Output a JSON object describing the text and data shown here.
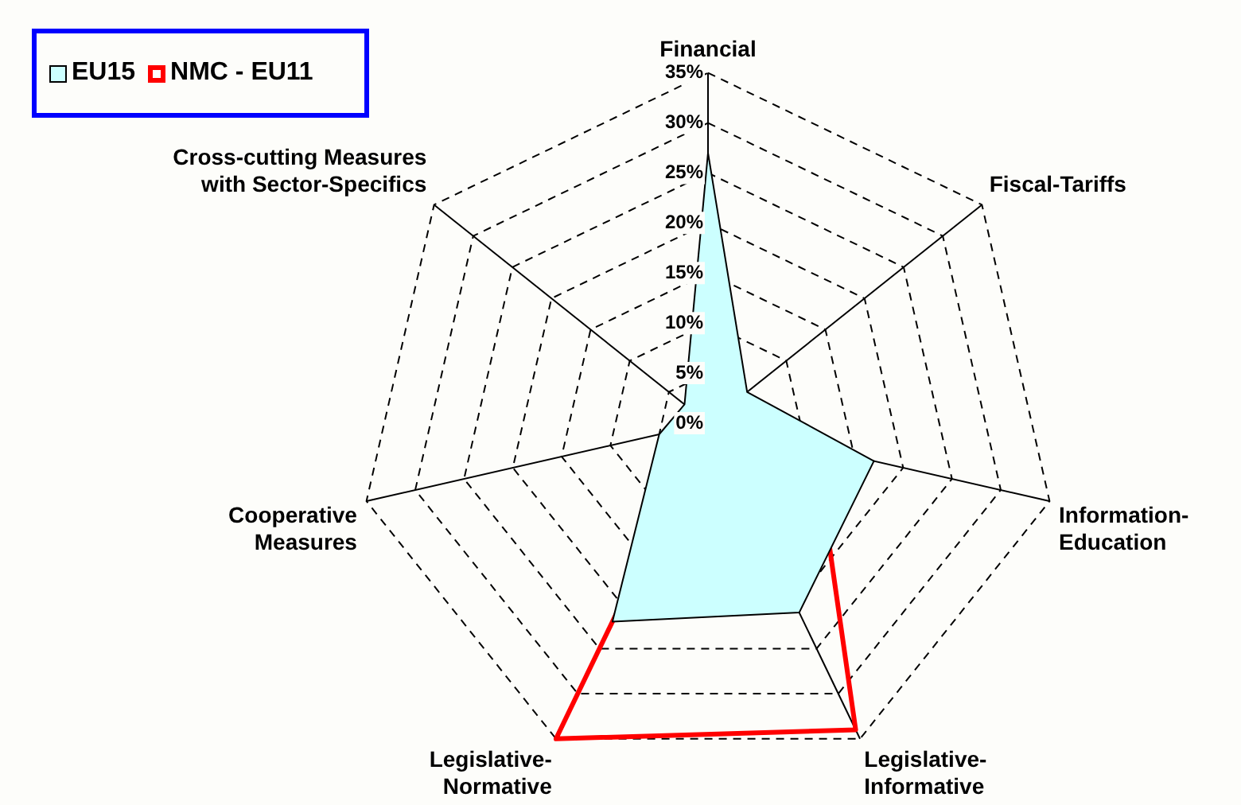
{
  "chart_data": {
    "type": "radar",
    "categories": [
      "Financial",
      "Fiscal-Tariffs",
      "Information-Education",
      "Legislative-Informative",
      "Legislative-Normative",
      "Cooperative Measures",
      "Cross-cutting Measures with Sector-Specifics"
    ],
    "series": [
      {
        "name": "EU15",
        "type": "area",
        "color": "#ccffff",
        "values": [
          27,
          5,
          17,
          21,
          22,
          5,
          3
        ]
      },
      {
        "name": "NMC - EU11",
        "color": "#ff0000",
        "values": [
          21,
          0,
          11,
          34,
          35,
          0,
          0
        ]
      }
    ],
    "ylim": [
      0,
      35
    ],
    "yticks": [
      {
        "value": 0,
        "label": "0%"
      },
      {
        "value": 5,
        "label": "5%"
      },
      {
        "value": 10,
        "label": "10%"
      },
      {
        "value": 15,
        "label": "15%"
      },
      {
        "value": 20,
        "label": "20%"
      },
      {
        "value": 25,
        "label": "25%"
      },
      {
        "value": 30,
        "label": "30%"
      },
      {
        "value": 35,
        "label": "35%"
      }
    ],
    "grid": true,
    "legend": "top left",
    "marker": "none"
  }
}
